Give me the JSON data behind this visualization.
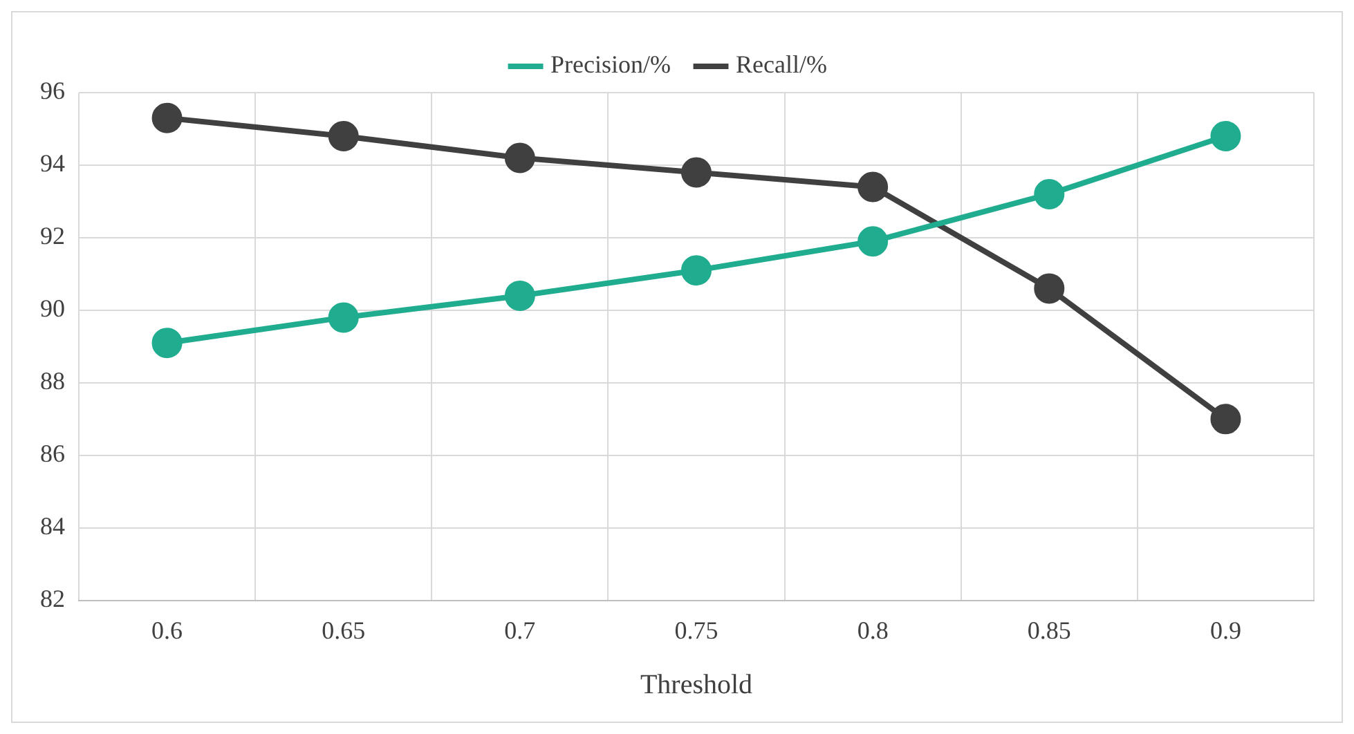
{
  "chart_data": {
    "type": "line",
    "xlabel": "Threshold",
    "categories": [
      "0.6",
      "0.65",
      "0.7",
      "0.75",
      "0.8",
      "0.85",
      "0.9"
    ],
    "series": [
      {
        "name": "Precision/%",
        "color": "#20ac8f",
        "values": [
          89.1,
          89.8,
          90.4,
          91.1,
          91.9,
          93.2,
          94.8
        ]
      },
      {
        "name": "Recall/%",
        "color": "#404040",
        "values": [
          95.3,
          94.8,
          94.2,
          93.8,
          93.4,
          90.6,
          87.0
        ]
      }
    ],
    "ylim": [
      82,
      96
    ],
    "yticks": [
      82,
      84,
      86,
      88,
      90,
      92,
      94,
      96
    ],
    "grid": true,
    "legend": "top",
    "marker": "circle",
    "line_style": "solid"
  }
}
